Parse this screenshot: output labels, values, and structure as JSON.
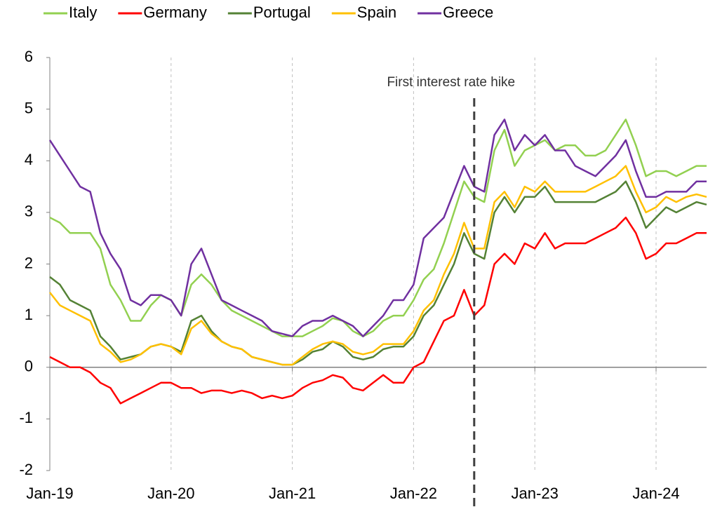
{
  "chart_data": {
    "type": "line",
    "x": [
      "2019-01",
      "2019-02",
      "2019-03",
      "2019-04",
      "2019-05",
      "2019-06",
      "2019-07",
      "2019-08",
      "2019-09",
      "2019-10",
      "2019-11",
      "2019-12",
      "2020-01",
      "2020-02",
      "2020-03",
      "2020-04",
      "2020-05",
      "2020-06",
      "2020-07",
      "2020-08",
      "2020-09",
      "2020-10",
      "2020-11",
      "2020-12",
      "2021-01",
      "2021-02",
      "2021-03",
      "2021-04",
      "2021-05",
      "2021-06",
      "2021-07",
      "2021-08",
      "2021-09",
      "2021-10",
      "2021-11",
      "2021-12",
      "2022-01",
      "2022-02",
      "2022-03",
      "2022-04",
      "2022-05",
      "2022-06",
      "2022-07",
      "2022-08",
      "2022-09",
      "2022-10",
      "2022-11",
      "2022-12",
      "2023-01",
      "2023-02",
      "2023-03",
      "2023-04",
      "2023-05",
      "2023-06",
      "2023-07",
      "2023-08",
      "2023-09",
      "2023-10",
      "2023-11",
      "2023-12",
      "2024-01",
      "2024-02",
      "2024-03",
      "2024-04",
      "2024-05",
      "2024-06"
    ],
    "series": [
      {
        "name": "Italy",
        "color": "#92d050",
        "values": [
          2.9,
          2.8,
          2.6,
          2.6,
          2.6,
          2.3,
          1.6,
          1.3,
          0.9,
          0.9,
          1.2,
          1.4,
          1.3,
          1.0,
          1.6,
          1.8,
          1.6,
          1.3,
          1.1,
          1.0,
          0.9,
          0.8,
          0.7,
          0.6,
          0.6,
          0.6,
          0.7,
          0.8,
          0.95,
          0.9,
          0.7,
          0.6,
          0.7,
          0.9,
          1.0,
          1.0,
          1.3,
          1.7,
          1.9,
          2.4,
          3.0,
          3.6,
          3.3,
          3.2,
          4.2,
          4.6,
          3.9,
          4.2,
          4.3,
          4.4,
          4.2,
          4.3,
          4.3,
          4.1,
          4.1,
          4.2,
          4.5,
          4.8,
          4.3,
          3.7,
          3.8,
          3.8,
          3.7,
          3.8,
          3.9,
          3.9
        ]
      },
      {
        "name": "Germany",
        "color": "#ff0000",
        "values": [
          0.2,
          0.1,
          0.0,
          0.0,
          -0.1,
          -0.3,
          -0.4,
          -0.7,
          -0.6,
          -0.5,
          -0.4,
          -0.3,
          -0.3,
          -0.4,
          -0.4,
          -0.5,
          -0.45,
          -0.45,
          -0.5,
          -0.45,
          -0.5,
          -0.6,
          -0.55,
          -0.6,
          -0.55,
          -0.4,
          -0.3,
          -0.25,
          -0.15,
          -0.2,
          -0.4,
          -0.45,
          -0.3,
          -0.15,
          -0.3,
          -0.3,
          0.0,
          0.1,
          0.5,
          0.9,
          1.0,
          1.5,
          1.0,
          1.2,
          2.0,
          2.2,
          2.0,
          2.4,
          2.3,
          2.6,
          2.3,
          2.4,
          2.4,
          2.4,
          2.5,
          2.6,
          2.7,
          2.9,
          2.6,
          2.1,
          2.2,
          2.4,
          2.4,
          2.5,
          2.6,
          2.6
        ]
      },
      {
        "name": "Portugal",
        "color": "#548235",
        "values": [
          1.75,
          1.6,
          1.3,
          1.2,
          1.1,
          0.6,
          0.4,
          0.15,
          0.2,
          0.25,
          0.4,
          0.45,
          0.4,
          0.3,
          0.9,
          1.0,
          0.7,
          0.5,
          0.4,
          0.35,
          0.2,
          0.15,
          0.1,
          0.05,
          0.05,
          0.15,
          0.3,
          0.35,
          0.5,
          0.4,
          0.2,
          0.15,
          0.2,
          0.35,
          0.4,
          0.4,
          0.6,
          1.0,
          1.2,
          1.6,
          2.0,
          2.6,
          2.2,
          2.1,
          3.0,
          3.3,
          3.0,
          3.3,
          3.3,
          3.5,
          3.2,
          3.2,
          3.2,
          3.2,
          3.2,
          3.3,
          3.4,
          3.6,
          3.2,
          2.7,
          2.9,
          3.1,
          3.0,
          3.1,
          3.2,
          3.15
        ]
      },
      {
        "name": "Spain",
        "color": "#ffc000",
        "values": [
          1.45,
          1.2,
          1.1,
          1.0,
          0.9,
          0.45,
          0.3,
          0.1,
          0.15,
          0.25,
          0.4,
          0.45,
          0.4,
          0.25,
          0.75,
          0.9,
          0.65,
          0.5,
          0.4,
          0.35,
          0.2,
          0.15,
          0.1,
          0.05,
          0.05,
          0.2,
          0.35,
          0.45,
          0.5,
          0.45,
          0.3,
          0.25,
          0.3,
          0.45,
          0.45,
          0.45,
          0.7,
          1.1,
          1.3,
          1.8,
          2.2,
          2.8,
          2.3,
          2.3,
          3.2,
          3.4,
          3.1,
          3.5,
          3.4,
          3.6,
          3.4,
          3.4,
          3.4,
          3.4,
          3.5,
          3.6,
          3.7,
          3.9,
          3.4,
          3.0,
          3.1,
          3.3,
          3.2,
          3.3,
          3.35,
          3.3
        ]
      },
      {
        "name": "Greece",
        "color": "#7030a0",
        "values": [
          4.4,
          4.1,
          3.8,
          3.5,
          3.4,
          2.6,
          2.2,
          1.9,
          1.3,
          1.2,
          1.4,
          1.4,
          1.3,
          1.0,
          2.0,
          2.3,
          1.8,
          1.3,
          1.2,
          1.1,
          1.0,
          0.9,
          0.7,
          0.65,
          0.6,
          0.8,
          0.9,
          0.9,
          1.0,
          0.9,
          0.8,
          0.6,
          0.8,
          1.0,
          1.3,
          1.3,
          1.6,
          2.5,
          2.7,
          2.9,
          3.4,
          3.9,
          3.5,
          3.4,
          4.5,
          4.8,
          4.2,
          4.5,
          4.3,
          4.5,
          4.2,
          4.2,
          3.9,
          3.8,
          3.7,
          3.9,
          4.1,
          4.4,
          3.8,
          3.3,
          3.3,
          3.4,
          3.4,
          3.4,
          3.6,
          3.6
        ]
      }
    ],
    "xlim": [
      "2019-01",
      "2024-06"
    ],
    "xticks": [
      {
        "value": "2019-01",
        "label": "Jan-19"
      },
      {
        "value": "2020-01",
        "label": "Jan-20"
      },
      {
        "value": "2021-01",
        "label": "Jan-21"
      },
      {
        "value": "2022-01",
        "label": "Jan-22"
      },
      {
        "value": "2023-01",
        "label": "Jan-23"
      },
      {
        "value": "2024-01",
        "label": "Jan-24"
      }
    ],
    "ylim": [
      -2,
      6
    ],
    "yticks": [
      -2,
      -1,
      0,
      1,
      2,
      3,
      4,
      5,
      6
    ],
    "xgrid": true,
    "legend": "top",
    "annotations": [
      {
        "x": "2022-07",
        "text": "First interest rate hike"
      }
    ]
  }
}
